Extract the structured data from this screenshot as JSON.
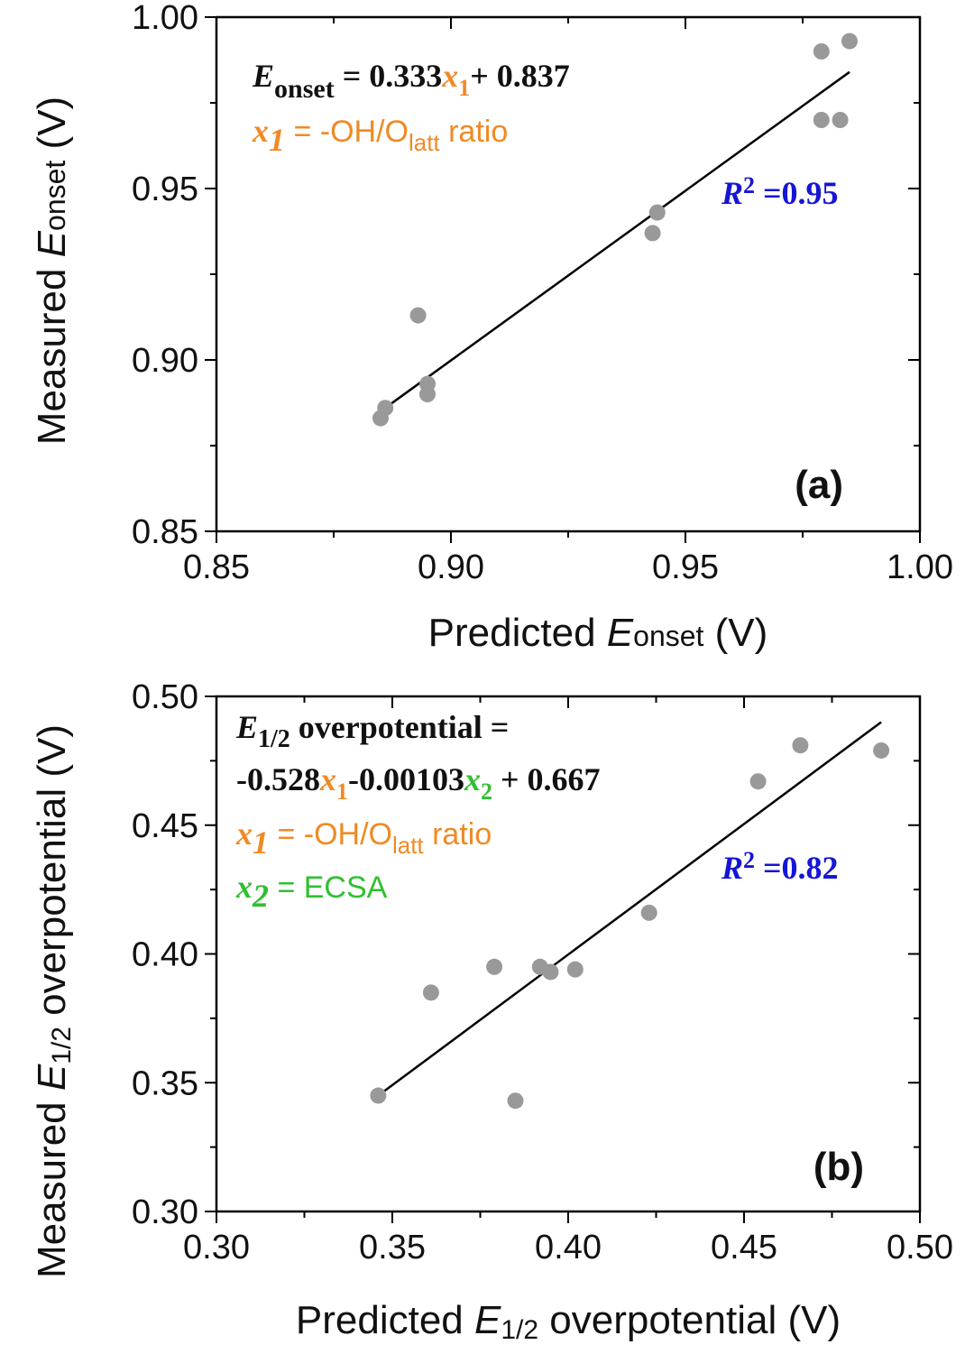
{
  "colors": {
    "x1": "#f08a24",
    "x2": "#2fc02f",
    "r2": "#1515d6",
    "points": "#999999",
    "fit": "#000000"
  },
  "chart_data": [
    {
      "type": "scatter",
      "panel": "(a)",
      "xlabel": {
        "prefix": "Predicted ",
        "var": "E",
        "sub": "onset",
        "suffix": " (V)"
      },
      "ylabel": {
        "prefix": "Measured ",
        "var": "E",
        "sub": "onset",
        "suffix": " (V)"
      },
      "xlim": [
        0.85,
        1.0
      ],
      "ylim": [
        0.85,
        1.0
      ],
      "xticks": [
        "0.85",
        "0.90",
        "0.95",
        "1.00"
      ],
      "yticks": [
        "0.85",
        "0.90",
        "0.95",
        "1.00"
      ],
      "points": [
        [
          0.885,
          0.883
        ],
        [
          0.886,
          0.886
        ],
        [
          0.893,
          0.913
        ],
        [
          0.895,
          0.893
        ],
        [
          0.895,
          0.89
        ],
        [
          0.943,
          0.937
        ],
        [
          0.944,
          0.943
        ],
        [
          0.979,
          0.99
        ],
        [
          0.979,
          0.97
        ],
        [
          0.983,
          0.97
        ],
        [
          0.985,
          0.993
        ]
      ],
      "fit_line": [
        [
          0.886,
          0.886
        ],
        [
          0.985,
          0.984
        ]
      ],
      "equation": {
        "lhs_var": "E",
        "lhs_sub": "onset",
        "coef1": " = 0.333",
        "x1_var": "x",
        "x1_sub": "1",
        "tail": "+ 0.837"
      },
      "definitions": [
        {
          "var": "x",
          "sub": "1",
          "text_pre": " = -OH/O",
          "text_sub": "latt",
          "text_post": " ratio",
          "color": "x1"
        }
      ],
      "r2": {
        "var": "R",
        "sup": "2",
        "text": " =0.95"
      }
    },
    {
      "type": "scatter",
      "panel": "(b)",
      "xlabel": {
        "prefix": "Predicted ",
        "var": "E",
        "sub": "1/2",
        "suffix": " overpotential (V)"
      },
      "ylabel": {
        "prefix": "Measured ",
        "var": "E",
        "sub": "1/2",
        "suffix": " overpotential (V)"
      },
      "xlim": [
        0.3,
        0.5
      ],
      "ylim": [
        0.3,
        0.5
      ],
      "xticks": [
        "0.30",
        "0.35",
        "0.40",
        "0.45",
        "0.50"
      ],
      "yticks": [
        "0.30",
        "0.35",
        "0.40",
        "0.45",
        "0.50"
      ],
      "points": [
        [
          0.346,
          0.345
        ],
        [
          0.361,
          0.385
        ],
        [
          0.379,
          0.395
        ],
        [
          0.385,
          0.343
        ],
        [
          0.392,
          0.395
        ],
        [
          0.395,
          0.393
        ],
        [
          0.402,
          0.394
        ],
        [
          0.423,
          0.416
        ],
        [
          0.454,
          0.467
        ],
        [
          0.466,
          0.481
        ],
        [
          0.489,
          0.479
        ]
      ],
      "fit_line": [
        [
          0.346,
          0.345
        ],
        [
          0.489,
          0.49
        ]
      ],
      "equation_line1": {
        "lhs_var": "E",
        "lhs_sub": "1/2",
        "text": " overpotential ="
      },
      "equation_line2": {
        "coef1": "-0.528",
        "x1_var": "x",
        "x1_sub": "1",
        "coef2": "-0.00103",
        "x2_var": "x",
        "x2_sub": "2",
        "tail": " + 0.667"
      },
      "definitions": [
        {
          "var": "x",
          "sub": "1",
          "text_pre": " = -OH/O",
          "text_sub": "latt",
          "text_post": " ratio",
          "color": "x1"
        },
        {
          "var": "x",
          "sub": "2",
          "text_pre": " = ECSA",
          "text_sub": "",
          "text_post": "",
          "color": "x2"
        }
      ],
      "r2": {
        "var": "R",
        "sup": "2",
        "text": " =0.82"
      }
    }
  ]
}
